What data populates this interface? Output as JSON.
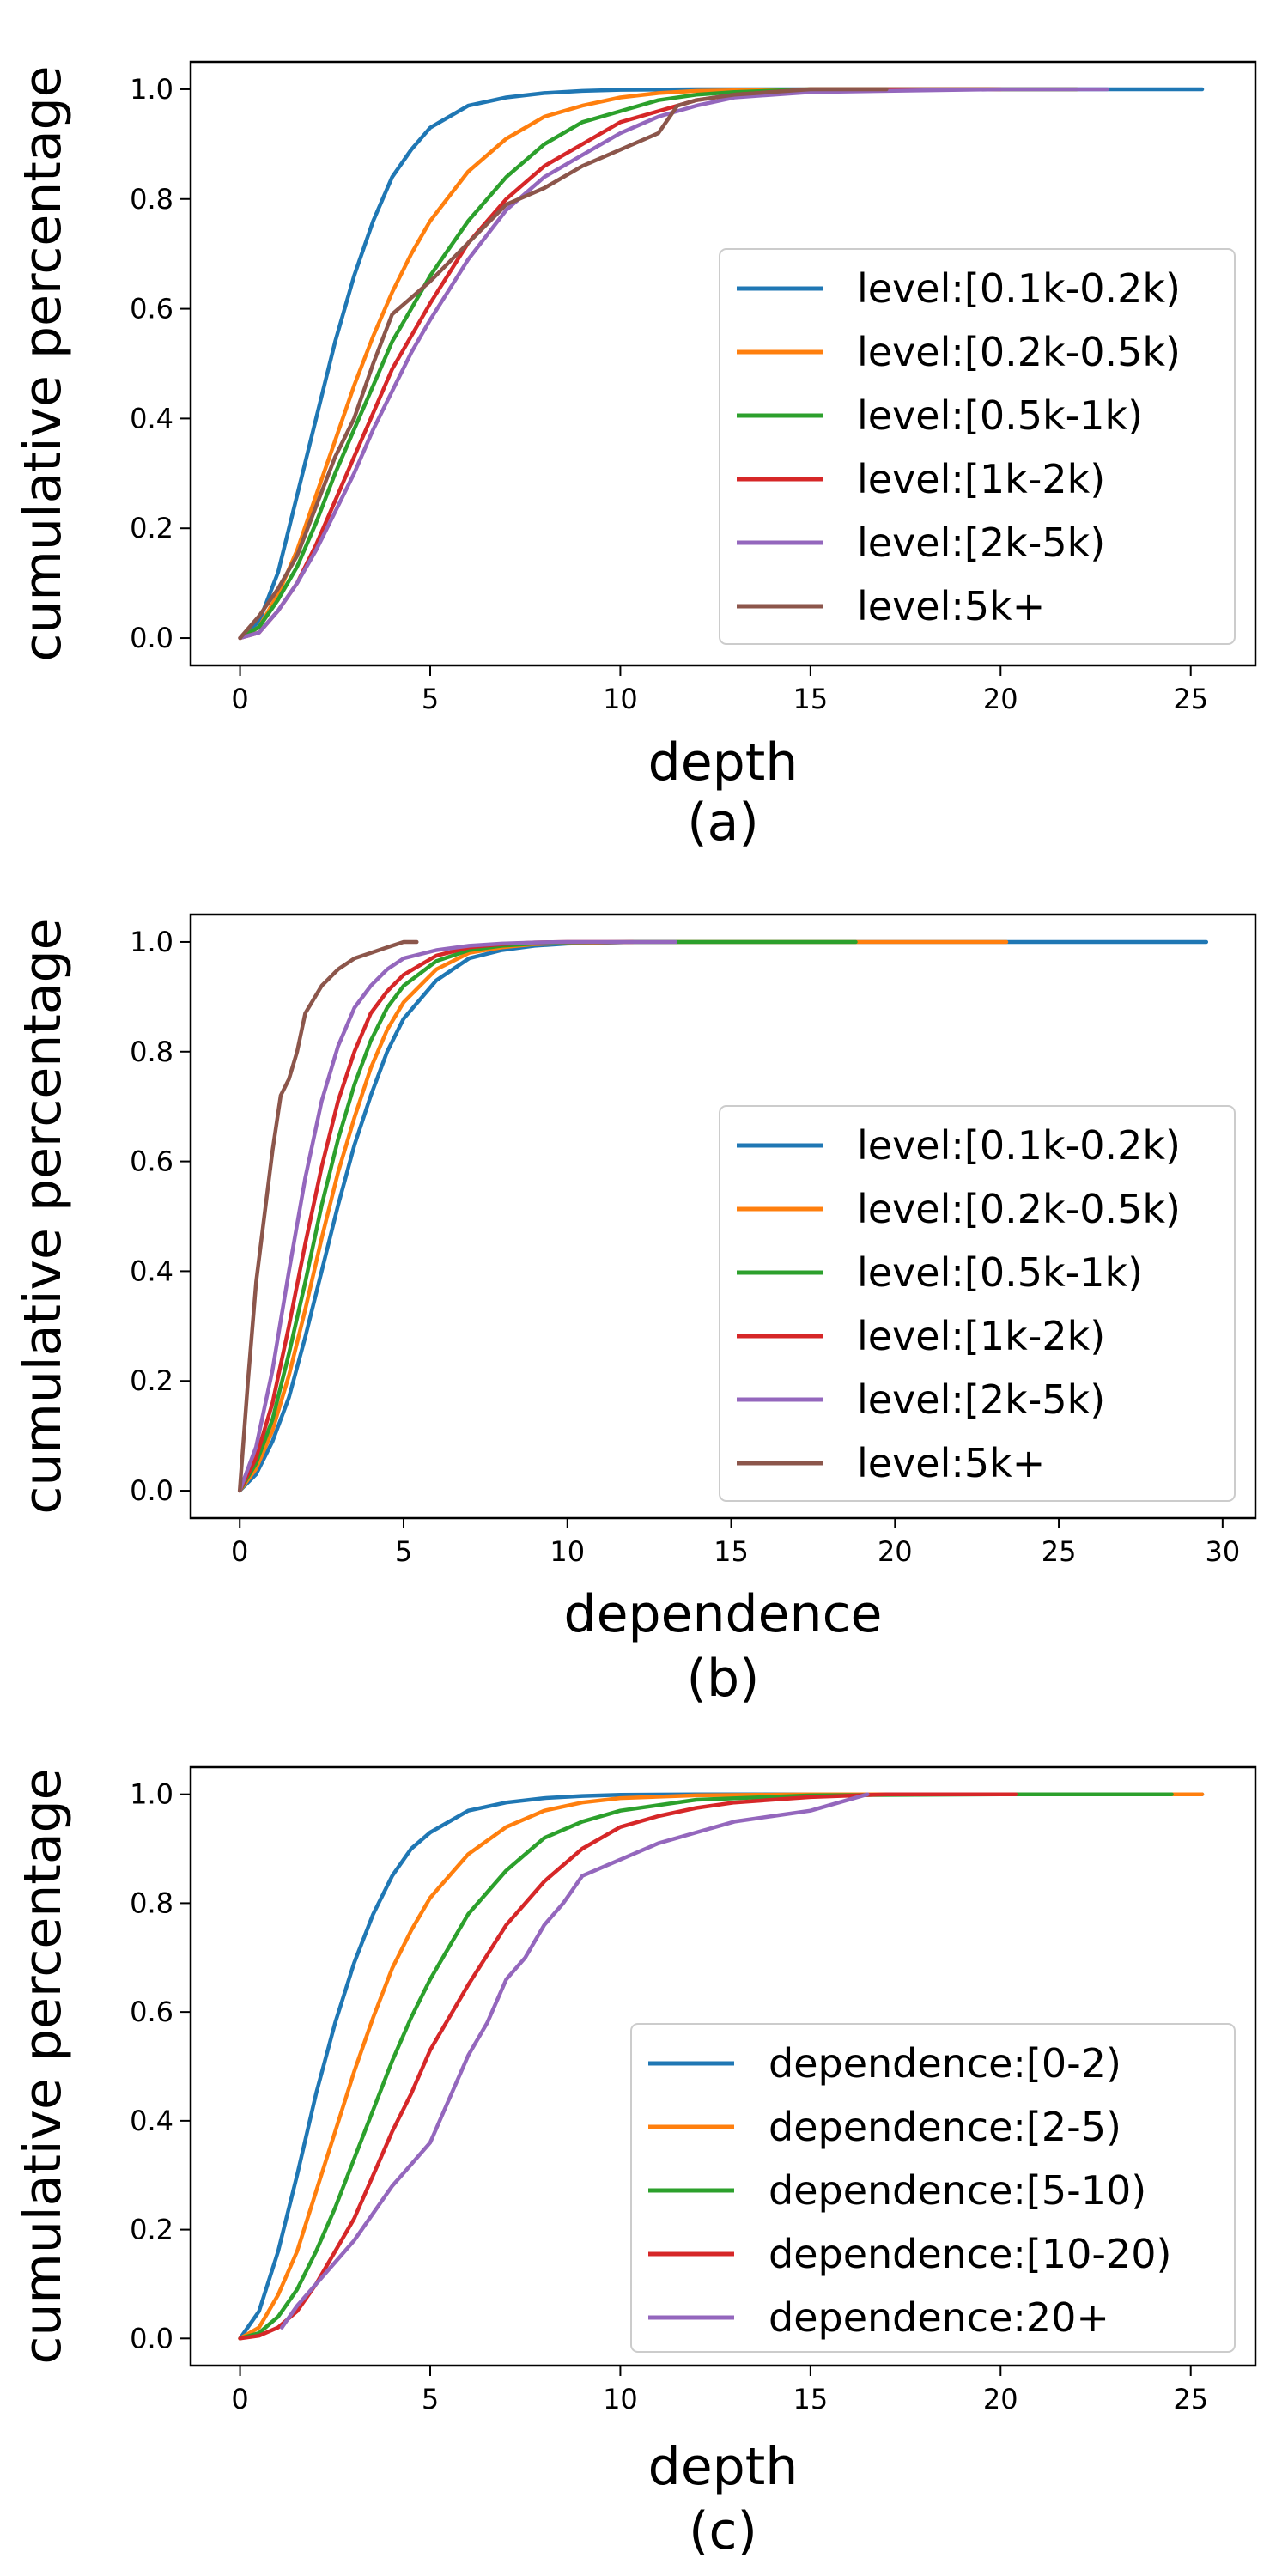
{
  "chart_data": [
    {
      "type": "line",
      "caption": "(a)",
      "xlabel": "depth",
      "ylabel": "cumulative percentage",
      "xlim": [
        -1.3,
        26.7
      ],
      "ylim": [
        -0.05,
        1.05
      ],
      "xticks": [
        0,
        5,
        10,
        15,
        20,
        25
      ],
      "yticks": [
        0.0,
        0.2,
        0.4,
        0.6,
        0.8,
        1.0
      ],
      "xtick_labels": [
        "0",
        "5",
        "10",
        "15",
        "20",
        "25"
      ],
      "ytick_labels": [
        "0.0",
        "0.2",
        "0.4",
        "0.6",
        "0.8",
        "1.0"
      ],
      "grid": false,
      "legend_position": "lower-right",
      "series": [
        {
          "name": "level:[0.1k-0.2k)",
          "color": "#1f77b4",
          "x": [
            0,
            0.5,
            1,
            1.5,
            2,
            2.5,
            3,
            3.5,
            4,
            4.5,
            5,
            6,
            7,
            8,
            9,
            10,
            12,
            15,
            20,
            25.3
          ],
          "y": [
            0,
            0.03,
            0.12,
            0.26,
            0.4,
            0.54,
            0.66,
            0.76,
            0.84,
            0.89,
            0.93,
            0.97,
            0.985,
            0.993,
            0.997,
            0.999,
            1.0,
            1.0,
            1.0,
            1.0
          ]
        },
        {
          "name": "level:[0.2k-0.5k)",
          "color": "#ff7f0e",
          "x": [
            0,
            0.5,
            1,
            1.5,
            2,
            2.5,
            3,
            3.5,
            4,
            4.5,
            5,
            6,
            7,
            8,
            9,
            10,
            11,
            12,
            15,
            20,
            22
          ],
          "y": [
            0,
            0.02,
            0.08,
            0.16,
            0.26,
            0.36,
            0.46,
            0.55,
            0.63,
            0.7,
            0.76,
            0.85,
            0.91,
            0.95,
            0.97,
            0.985,
            0.993,
            0.997,
            1.0,
            1.0,
            1.0
          ]
        },
        {
          "name": "level:[0.5k-1k)",
          "color": "#2ca02c",
          "x": [
            0,
            0.5,
            1,
            1.5,
            2,
            2.5,
            3,
            3.5,
            4,
            4.5,
            5,
            6,
            7,
            8,
            9,
            10,
            11,
            12,
            13,
            15,
            20,
            22
          ],
          "y": [
            0,
            0.02,
            0.07,
            0.13,
            0.21,
            0.3,
            0.38,
            0.46,
            0.54,
            0.6,
            0.66,
            0.76,
            0.84,
            0.9,
            0.94,
            0.96,
            0.98,
            0.99,
            0.995,
            1.0,
            1.0,
            1.0
          ]
        },
        {
          "name": "level:[1k-2k)",
          "color": "#d62728",
          "x": [
            0,
            0.5,
            1,
            1.5,
            2,
            2.5,
            3,
            3.5,
            4,
            4.5,
            5,
            6,
            7,
            8,
            9,
            10,
            11,
            12,
            13,
            15,
            20
          ],
          "y": [
            0,
            0.01,
            0.05,
            0.1,
            0.17,
            0.25,
            0.33,
            0.41,
            0.49,
            0.55,
            0.61,
            0.72,
            0.8,
            0.86,
            0.9,
            0.94,
            0.96,
            0.98,
            0.99,
            1.0,
            1.0
          ]
        },
        {
          "name": "level:[2k-5k)",
          "color": "#9467bd",
          "x": [
            0,
            0.5,
            1,
            1.5,
            2,
            2.5,
            3,
            3.5,
            4,
            4.5,
            5,
            6,
            7,
            8,
            9,
            10,
            11,
            12,
            13,
            15,
            20,
            22.8
          ],
          "y": [
            0,
            0.01,
            0.05,
            0.1,
            0.16,
            0.23,
            0.3,
            0.38,
            0.45,
            0.52,
            0.58,
            0.69,
            0.78,
            0.84,
            0.88,
            0.92,
            0.95,
            0.97,
            0.985,
            0.995,
            1.0,
            1.0
          ]
        },
        {
          "name": "level:5k+",
          "color": "#8c564b",
          "x": [
            0,
            0.5,
            1,
            1.5,
            2,
            2.5,
            3,
            3.5,
            4,
            4.5,
            5,
            6,
            7,
            8,
            9,
            10,
            11,
            11.5,
            12,
            13,
            15,
            17
          ],
          "y": [
            0,
            0.04,
            0.09,
            0.15,
            0.24,
            0.33,
            0.4,
            0.5,
            0.59,
            0.62,
            0.65,
            0.72,
            0.79,
            0.82,
            0.86,
            0.89,
            0.92,
            0.97,
            0.98,
            0.99,
            1.0,
            1.0
          ]
        }
      ]
    },
    {
      "type": "line",
      "caption": "(b)",
      "xlabel": "dependence",
      "ylabel": "cumulative percentage",
      "xlim": [
        -1.5,
        31
      ],
      "ylim": [
        -0.05,
        1.05
      ],
      "xticks": [
        0,
        5,
        10,
        15,
        20,
        25,
        30
      ],
      "yticks": [
        0.0,
        0.2,
        0.4,
        0.6,
        0.8,
        1.0
      ],
      "xtick_labels": [
        "0",
        "5",
        "10",
        "15",
        "20",
        "25",
        "30"
      ],
      "ytick_labels": [
        "0.0",
        "0.2",
        "0.4",
        "0.6",
        "0.8",
        "1.0"
      ],
      "grid": false,
      "legend_position": "lower-right",
      "series": [
        {
          "name": "level:[0.1k-0.2k)",
          "color": "#1f77b4",
          "x": [
            0,
            0.5,
            1,
            1.5,
            2,
            2.5,
            3,
            3.5,
            4,
            4.5,
            5,
            6,
            7,
            8,
            9,
            10,
            12,
            15,
            20,
            25,
            29.5
          ],
          "y": [
            0,
            0.03,
            0.09,
            0.17,
            0.28,
            0.4,
            0.52,
            0.63,
            0.72,
            0.8,
            0.86,
            0.93,
            0.97,
            0.985,
            0.993,
            0.997,
            1.0,
            1.0,
            1.0,
            1.0,
            1.0
          ]
        },
        {
          "name": "level:[0.2k-0.5k)",
          "color": "#ff7f0e",
          "x": [
            0,
            0.5,
            1,
            1.5,
            2,
            2.5,
            3,
            3.5,
            4,
            4.5,
            5,
            6,
            7,
            8,
            9,
            10,
            12,
            15,
            20,
            23.4
          ],
          "y": [
            0,
            0.04,
            0.11,
            0.21,
            0.33,
            0.46,
            0.58,
            0.68,
            0.77,
            0.84,
            0.89,
            0.95,
            0.98,
            0.99,
            0.996,
            0.998,
            1.0,
            1.0,
            1.0,
            1.0
          ]
        },
        {
          "name": "level:[0.5k-1k)",
          "color": "#2ca02c",
          "x": [
            0,
            0.5,
            1,
            1.5,
            2,
            2.5,
            3,
            3.5,
            4,
            4.5,
            5,
            6,
            7,
            8,
            9,
            10,
            12,
            15,
            18.8
          ],
          "y": [
            0,
            0.05,
            0.13,
            0.25,
            0.38,
            0.52,
            0.64,
            0.74,
            0.82,
            0.88,
            0.92,
            0.965,
            0.985,
            0.993,
            0.997,
            0.999,
            1.0,
            1.0,
            1.0
          ]
        },
        {
          "name": "level:[1k-2k)",
          "color": "#d62728",
          "x": [
            0,
            0.5,
            1,
            1.5,
            2,
            2.5,
            3,
            3.5,
            4,
            4.5,
            5,
            6,
            7,
            8,
            9,
            10,
            12
          ],
          "y": [
            0,
            0.06,
            0.16,
            0.3,
            0.45,
            0.59,
            0.71,
            0.8,
            0.87,
            0.91,
            0.94,
            0.975,
            0.99,
            0.996,
            0.999,
            1.0,
            1.0
          ]
        },
        {
          "name": "level:[2k-5k)",
          "color": "#9467bd",
          "x": [
            0,
            0.5,
            1,
            1.5,
            2,
            2.5,
            3,
            3.5,
            4,
            4.5,
            5,
            6,
            7,
            8,
            9,
            10,
            13.3
          ],
          "y": [
            0,
            0.08,
            0.22,
            0.4,
            0.57,
            0.71,
            0.81,
            0.88,
            0.92,
            0.95,
            0.97,
            0.985,
            0.993,
            0.997,
            0.999,
            1.0,
            1.0
          ]
        },
        {
          "name": "level:5k+",
          "color": "#8c564b",
          "x": [
            0,
            0.25,
            0.5,
            0.75,
            1,
            1.25,
            1.5,
            1.75,
            2,
            2.5,
            3,
            3.5,
            4,
            4.5,
            5,
            5.4
          ],
          "y": [
            0,
            0.2,
            0.38,
            0.5,
            0.62,
            0.72,
            0.75,
            0.8,
            0.87,
            0.92,
            0.95,
            0.97,
            0.98,
            0.99,
            1.0,
            1.0
          ]
        }
      ]
    },
    {
      "type": "line",
      "caption": "(c)",
      "xlabel": "depth",
      "ylabel": "cumulative percentage",
      "xlim": [
        -1.3,
        26.7
      ],
      "ylim": [
        -0.05,
        1.05
      ],
      "xticks": [
        0,
        5,
        10,
        15,
        20,
        25
      ],
      "yticks": [
        0.0,
        0.2,
        0.4,
        0.6,
        0.8,
        1.0
      ],
      "xtick_labels": [
        "0",
        "5",
        "10",
        "15",
        "20",
        "25"
      ],
      "ytick_labels": [
        "0.0",
        "0.2",
        "0.4",
        "0.6",
        "0.8",
        "1.0"
      ],
      "grid": false,
      "legend_position": "lower-right",
      "series": [
        {
          "name": "dependence:[0-2)",
          "color": "#1f77b4",
          "x": [
            0,
            0.5,
            1,
            1.5,
            2,
            2.5,
            3,
            3.5,
            4,
            4.5,
            5,
            6,
            7,
            8,
            9,
            10,
            12,
            15,
            20,
            25.3
          ],
          "y": [
            0,
            0.05,
            0.16,
            0.3,
            0.45,
            0.58,
            0.69,
            0.78,
            0.85,
            0.9,
            0.93,
            0.97,
            0.985,
            0.993,
            0.997,
            0.999,
            1.0,
            1.0,
            1.0,
            1.0
          ]
        },
        {
          "name": "dependence:[2-5)",
          "color": "#ff7f0e",
          "x": [
            0,
            0.5,
            1,
            1.5,
            2,
            2.5,
            3,
            3.5,
            4,
            4.5,
            5,
            6,
            7,
            8,
            9,
            10,
            12,
            15,
            20,
            25.3
          ],
          "y": [
            0,
            0.02,
            0.08,
            0.16,
            0.27,
            0.38,
            0.49,
            0.59,
            0.68,
            0.75,
            0.81,
            0.89,
            0.94,
            0.97,
            0.985,
            0.993,
            0.998,
            1.0,
            1.0,
            1.0
          ]
        },
        {
          "name": "dependence:[5-10)",
          "color": "#2ca02c",
          "x": [
            0,
            0.5,
            1,
            1.5,
            2,
            2.5,
            3,
            3.5,
            4,
            4.5,
            5,
            6,
            7,
            8,
            9,
            10,
            12,
            15,
            20,
            24.5
          ],
          "y": [
            0,
            0.01,
            0.04,
            0.09,
            0.16,
            0.24,
            0.33,
            0.42,
            0.51,
            0.59,
            0.66,
            0.78,
            0.86,
            0.92,
            0.95,
            0.97,
            0.99,
            0.998,
            1.0,
            1.0
          ]
        },
        {
          "name": "dependence:[10-20)",
          "color": "#d62728",
          "x": [
            0,
            0.5,
            1,
            1.5,
            2,
            2.5,
            3,
            3.5,
            4,
            4.5,
            5,
            6,
            7,
            8,
            9,
            10,
            11,
            12,
            13,
            15,
            17,
            20.4
          ],
          "y": [
            0,
            0.005,
            0.02,
            0.05,
            0.1,
            0.16,
            0.22,
            0.3,
            0.38,
            0.45,
            0.53,
            0.65,
            0.76,
            0.84,
            0.9,
            0.94,
            0.96,
            0.975,
            0.985,
            0.995,
            1.0,
            1.0
          ]
        },
        {
          "name": "dependence:20+",
          "color": "#9467bd",
          "x": [
            1.1,
            1.5,
            2,
            2.5,
            3,
            3.5,
            4,
            4.5,
            5,
            5.5,
            6,
            6.5,
            7,
            7.5,
            8,
            8.5,
            9,
            10,
            11,
            12,
            13,
            14,
            15,
            16.5
          ],
          "y": [
            0.02,
            0.06,
            0.1,
            0.14,
            0.18,
            0.23,
            0.28,
            0.32,
            0.36,
            0.44,
            0.52,
            0.58,
            0.66,
            0.7,
            0.76,
            0.8,
            0.85,
            0.88,
            0.91,
            0.93,
            0.95,
            0.96,
            0.97,
            1.0
          ]
        }
      ]
    }
  ]
}
